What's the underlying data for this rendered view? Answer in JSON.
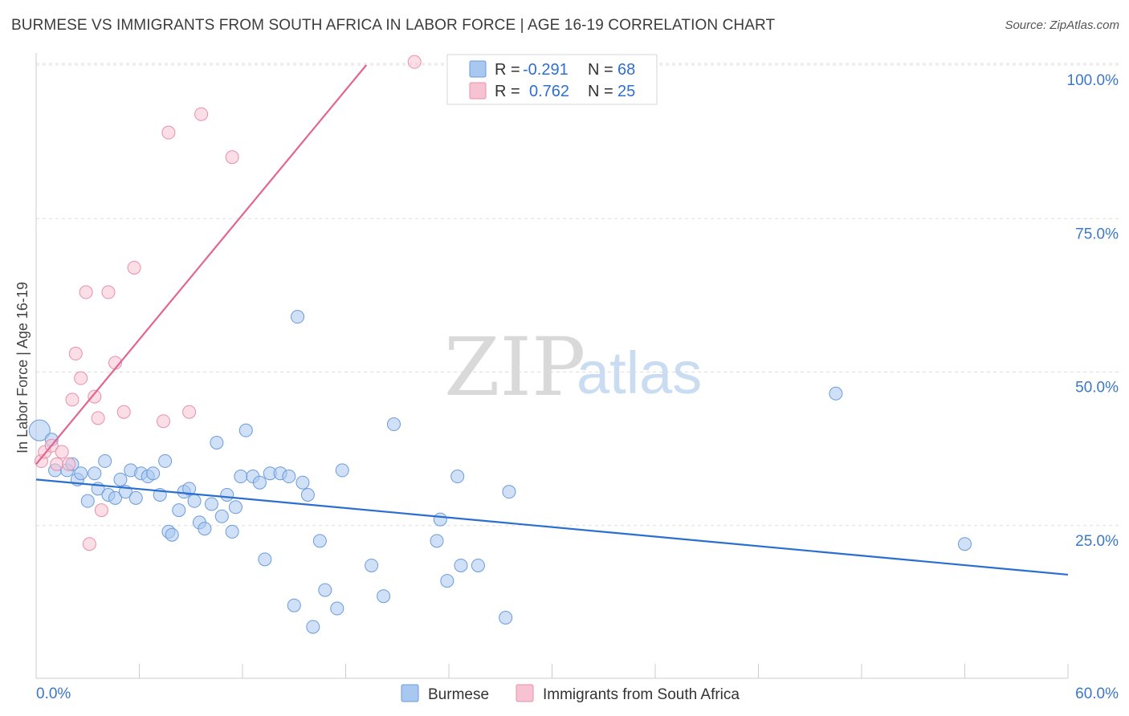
{
  "header": {
    "title": "BURMESE VS IMMIGRANTS FROM SOUTH AFRICA IN LABOR FORCE | AGE 16-19 CORRELATION CHART",
    "source": "Source: ZipAtlas.com"
  },
  "watermark": {
    "zip": "ZIP",
    "atlas": "atlas"
  },
  "colors": {
    "burmese_fill": "#a9c8f0",
    "burmese_stroke": "#6a9bdc",
    "burmese_line": "#2a6fcf",
    "sa_fill": "#f7c3d2",
    "sa_stroke": "#e98fab",
    "sa_line": "#e2668f",
    "tick_text": "#3b78c9",
    "grid": "#dddddd"
  },
  "legend": {
    "rows": [
      {
        "r_label": "R =",
        "r_value": "-0.291",
        "n_label": "N =",
        "n_value": "68"
      },
      {
        "r_label": "R =",
        "r_value": "0.762",
        "n_label": "N =",
        "n_value": "25"
      }
    ]
  },
  "chart_data": {
    "type": "scatter",
    "xlabel": "",
    "ylabel": "In Labor Force | Age 16-19",
    "xlim": [
      0,
      60
    ],
    "ylim": [
      0,
      102
    ],
    "x_tick_labels": [
      "0.0%",
      "60.0%"
    ],
    "y_ticks": [
      25,
      50,
      75,
      100
    ],
    "y_tick_labels": [
      "25.0%",
      "50.0%",
      "75.0%",
      "100.0%"
    ],
    "grid": true,
    "legend_position": "top-center",
    "series": [
      {
        "name": "Burmese",
        "r": -0.291,
        "n": 68,
        "trend": {
          "x": [
            0,
            60
          ],
          "y": [
            32.5,
            17.0
          ]
        },
        "points": [
          [
            0.2,
            40.5
          ],
          [
            0.9,
            39.0
          ],
          [
            1.1,
            34.0
          ],
          [
            1.8,
            34.0
          ],
          [
            2.1,
            35.0
          ],
          [
            2.4,
            32.5
          ],
          [
            2.6,
            33.5
          ],
          [
            3.0,
            29.0
          ],
          [
            3.4,
            33.5
          ],
          [
            3.6,
            31.0
          ],
          [
            4.0,
            35.5
          ],
          [
            4.2,
            30.0
          ],
          [
            4.6,
            29.5
          ],
          [
            4.9,
            32.5
          ],
          [
            5.2,
            30.5
          ],
          [
            5.5,
            34.0
          ],
          [
            5.8,
            29.5
          ],
          [
            6.1,
            33.5
          ],
          [
            6.5,
            33.0
          ],
          [
            6.8,
            33.5
          ],
          [
            7.2,
            30.0
          ],
          [
            7.5,
            35.5
          ],
          [
            7.7,
            24.0
          ],
          [
            7.9,
            23.5
          ],
          [
            8.3,
            27.5
          ],
          [
            8.6,
            30.5
          ],
          [
            8.9,
            31.0
          ],
          [
            9.2,
            29.0
          ],
          [
            9.5,
            25.5
          ],
          [
            9.8,
            24.5
          ],
          [
            10.2,
            28.5
          ],
          [
            10.5,
            38.5
          ],
          [
            10.8,
            26.5
          ],
          [
            11.1,
            30.0
          ],
          [
            11.4,
            24.0
          ],
          [
            11.6,
            28.0
          ],
          [
            11.9,
            33.0
          ],
          [
            12.2,
            40.5
          ],
          [
            12.6,
            33.0
          ],
          [
            13.0,
            32.0
          ],
          [
            13.3,
            19.5
          ],
          [
            13.6,
            33.5
          ],
          [
            14.2,
            33.5
          ],
          [
            14.7,
            33.0
          ],
          [
            15.0,
            12.0
          ],
          [
            15.2,
            59.0
          ],
          [
            15.5,
            32.0
          ],
          [
            15.8,
            30.0
          ],
          [
            16.1,
            8.5
          ],
          [
            16.5,
            22.5
          ],
          [
            16.8,
            14.5
          ],
          [
            17.5,
            11.5
          ],
          [
            17.8,
            34.0
          ],
          [
            19.5,
            18.5
          ],
          [
            20.2,
            13.5
          ],
          [
            20.8,
            41.5
          ],
          [
            23.3,
            22.5
          ],
          [
            23.5,
            26.0
          ],
          [
            23.9,
            16.0
          ],
          [
            24.5,
            33.0
          ],
          [
            24.7,
            18.5
          ],
          [
            25.7,
            18.5
          ],
          [
            27.3,
            10.0
          ],
          [
            27.5,
            30.5
          ],
          [
            46.5,
            46.5
          ],
          [
            54.0,
            22.0
          ]
        ]
      },
      {
        "name": "Immigrants from South Africa",
        "r": 0.762,
        "n": 25,
        "trend": {
          "x": [
            0,
            19.2
          ],
          "y": [
            35.0,
            100.0
          ]
        },
        "points": [
          [
            0.3,
            35.5
          ],
          [
            0.5,
            37.0
          ],
          [
            0.9,
            38.0
          ],
          [
            1.2,
            35.0
          ],
          [
            1.5,
            37.0
          ],
          [
            1.9,
            35.0
          ],
          [
            2.1,
            45.5
          ],
          [
            2.3,
            53.0
          ],
          [
            2.6,
            49.0
          ],
          [
            2.9,
            63.0
          ],
          [
            3.1,
            22.0
          ],
          [
            3.4,
            46.0
          ],
          [
            3.6,
            42.5
          ],
          [
            3.8,
            27.5
          ],
          [
            4.2,
            63.0
          ],
          [
            4.6,
            51.5
          ],
          [
            5.1,
            43.5
          ],
          [
            5.7,
            67.0
          ],
          [
            7.4,
            42.0
          ],
          [
            7.7,
            89.0
          ],
          [
            8.9,
            43.5
          ],
          [
            9.6,
            92.0
          ],
          [
            11.4,
            85.0
          ],
          [
            22.0,
            100.5
          ]
        ]
      }
    ]
  },
  "bottom_legend": [
    "Burmese",
    "Immigrants from South Africa"
  ]
}
